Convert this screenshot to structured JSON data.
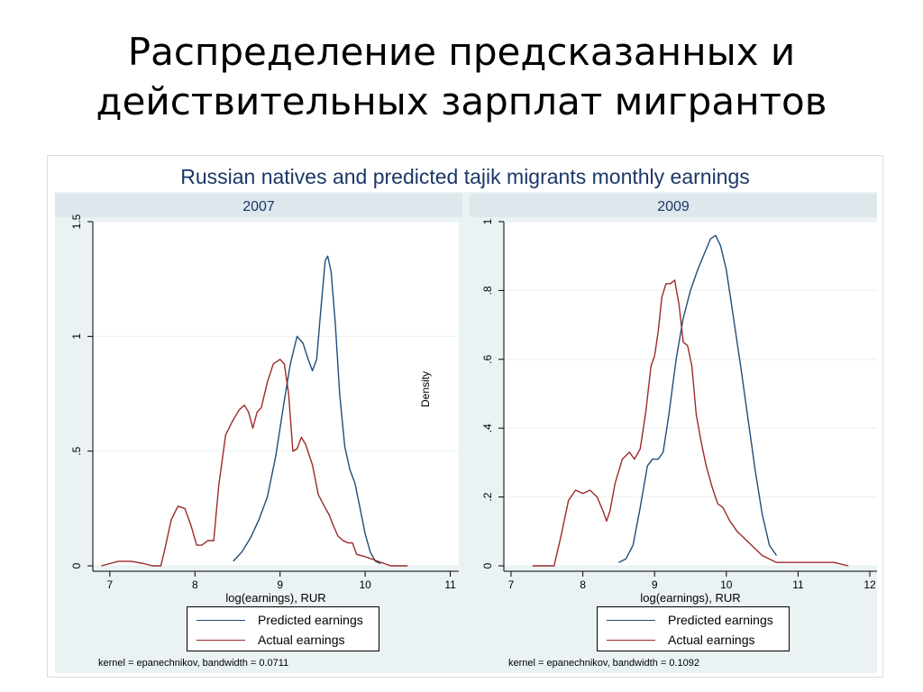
{
  "slide": {
    "title_line1": "Распределение предсказанных и",
    "title_line2": "действительных зарплат мигрантов"
  },
  "figure": {
    "title": "Russian natives and predicted tajik migrants monthly earnings",
    "ylabel": "Density"
  },
  "colors": {
    "predicted": "#1f4e79",
    "actual": "#9c2a2a",
    "grid": "#eaf2f3",
    "title": "#1c3768"
  },
  "chart_data": [
    {
      "type": "line",
      "panel_title": "2007",
      "xlabel": "log(earnings), RUR",
      "ylabel": "Density",
      "xlim": [
        6.8,
        11.1
      ],
      "ylim": [
        0,
        1.5
      ],
      "xticks": [
        7,
        8,
        9,
        10,
        11
      ],
      "yticks": [
        0,
        0.5,
        1,
        1.5
      ],
      "ytick_labels": [
        "0",
        ".5",
        "1",
        "1.5"
      ],
      "grid": true,
      "legend_position": "bottom",
      "note": "kernel = epanechnikov, bandwidth = 0.0711",
      "series": [
        {
          "name": "Predicted earnings",
          "points": [
            [
              8.45,
              0.02
            ],
            [
              8.55,
              0.06
            ],
            [
              8.65,
              0.12
            ],
            [
              8.75,
              0.2
            ],
            [
              8.85,
              0.3
            ],
            [
              8.95,
              0.48
            ],
            [
              9.05,
              0.72
            ],
            [
              9.12,
              0.88
            ],
            [
              9.2,
              1.0
            ],
            [
              9.27,
              0.97
            ],
            [
              9.33,
              0.9
            ],
            [
              9.38,
              0.85
            ],
            [
              9.43,
              0.9
            ],
            [
              9.48,
              1.12
            ],
            [
              9.53,
              1.33
            ],
            [
              9.56,
              1.35
            ],
            [
              9.6,
              1.28
            ],
            [
              9.65,
              1.05
            ],
            [
              9.7,
              0.75
            ],
            [
              9.76,
              0.52
            ],
            [
              9.82,
              0.42
            ],
            [
              9.88,
              0.36
            ],
            [
              9.94,
              0.25
            ],
            [
              10.0,
              0.14
            ],
            [
              10.06,
              0.06
            ],
            [
              10.12,
              0.02
            ],
            [
              10.18,
              0.01
            ]
          ]
        },
        {
          "name": "Actual earnings",
          "points": [
            [
              6.9,
              0.0
            ],
            [
              7.0,
              0.01
            ],
            [
              7.1,
              0.02
            ],
            [
              7.25,
              0.02
            ],
            [
              7.4,
              0.01
            ],
            [
              7.5,
              0.0
            ],
            [
              7.6,
              0.0
            ],
            [
              7.65,
              0.08
            ],
            [
              7.72,
              0.2
            ],
            [
              7.8,
              0.26
            ],
            [
              7.88,
              0.25
            ],
            [
              7.95,
              0.18
            ],
            [
              8.02,
              0.09
            ],
            [
              8.08,
              0.09
            ],
            [
              8.15,
              0.11
            ],
            [
              8.22,
              0.11
            ],
            [
              8.28,
              0.35
            ],
            [
              8.36,
              0.57
            ],
            [
              8.44,
              0.63
            ],
            [
              8.52,
              0.68
            ],
            [
              8.58,
              0.7
            ],
            [
              8.63,
              0.67
            ],
            [
              8.68,
              0.6
            ],
            [
              8.73,
              0.67
            ],
            [
              8.78,
              0.69
            ],
            [
              8.85,
              0.8
            ],
            [
              8.92,
              0.88
            ],
            [
              9.0,
              0.9
            ],
            [
              9.05,
              0.88
            ],
            [
              9.1,
              0.75
            ],
            [
              9.15,
              0.5
            ],
            [
              9.2,
              0.51
            ],
            [
              9.25,
              0.56
            ],
            [
              9.3,
              0.53
            ],
            [
              9.38,
              0.44
            ],
            [
              9.45,
              0.31
            ],
            [
              9.52,
              0.26
            ],
            [
              9.58,
              0.22
            ],
            [
              9.62,
              0.18
            ],
            [
              9.68,
              0.13
            ],
            [
              9.74,
              0.11
            ],
            [
              9.8,
              0.1
            ],
            [
              9.85,
              0.1
            ],
            [
              9.9,
              0.05
            ],
            [
              10.0,
              0.04
            ],
            [
              10.15,
              0.02
            ],
            [
              10.3,
              0.0
            ],
            [
              10.5,
              0.0
            ]
          ]
        }
      ]
    },
    {
      "type": "line",
      "panel_title": "2009",
      "xlabel": "log(earnings), RUR",
      "ylabel": "Density",
      "xlim": [
        6.9,
        12.1
      ],
      "ylim": [
        0,
        1
      ],
      "xticks": [
        7,
        8,
        9,
        10,
        11,
        12
      ],
      "yticks": [
        0,
        0.2,
        0.4,
        0.6,
        0.8,
        1
      ],
      "ytick_labels": [
        "0",
        ".2",
        ".4",
        ".6",
        ".8",
        "1"
      ],
      "grid": true,
      "legend_position": "bottom",
      "note": "kernel = epanechnikov, bandwidth = 0.1092",
      "series": [
        {
          "name": "Predicted earnings",
          "points": [
            [
              8.5,
              0.01
            ],
            [
              8.6,
              0.02
            ],
            [
              8.7,
              0.06
            ],
            [
              8.8,
              0.17
            ],
            [
              8.9,
              0.29
            ],
            [
              8.97,
              0.31
            ],
            [
              9.05,
              0.31
            ],
            [
              9.12,
              0.33
            ],
            [
              9.2,
              0.44
            ],
            [
              9.3,
              0.6
            ],
            [
              9.4,
              0.72
            ],
            [
              9.5,
              0.8
            ],
            [
              9.6,
              0.86
            ],
            [
              9.7,
              0.91
            ],
            [
              9.78,
              0.95
            ],
            [
              9.85,
              0.96
            ],
            [
              9.92,
              0.93
            ],
            [
              10.0,
              0.86
            ],
            [
              10.1,
              0.72
            ],
            [
              10.2,
              0.58
            ],
            [
              10.3,
              0.43
            ],
            [
              10.4,
              0.28
            ],
            [
              10.5,
              0.15
            ],
            [
              10.6,
              0.06
            ],
            [
              10.7,
              0.03
            ]
          ]
        },
        {
          "name": "Actual earnings",
          "points": [
            [
              7.3,
              0.0
            ],
            [
              7.5,
              0.0
            ],
            [
              7.6,
              0.0
            ],
            [
              7.7,
              0.09
            ],
            [
              7.8,
              0.19
            ],
            [
              7.9,
              0.22
            ],
            [
              8.0,
              0.21
            ],
            [
              8.1,
              0.22
            ],
            [
              8.2,
              0.2
            ],
            [
              8.28,
              0.16
            ],
            [
              8.33,
              0.13
            ],
            [
              8.38,
              0.16
            ],
            [
              8.45,
              0.24
            ],
            [
              8.55,
              0.31
            ],
            [
              8.65,
              0.33
            ],
            [
              8.72,
              0.31
            ],
            [
              8.8,
              0.34
            ],
            [
              8.88,
              0.45
            ],
            [
              8.95,
              0.58
            ],
            [
              9.0,
              0.61
            ],
            [
              9.05,
              0.68
            ],
            [
              9.1,
              0.78
            ],
            [
              9.16,
              0.82
            ],
            [
              9.22,
              0.82
            ],
            [
              9.28,
              0.83
            ],
            [
              9.34,
              0.76
            ],
            [
              9.4,
              0.65
            ],
            [
              9.46,
              0.64
            ],
            [
              9.52,
              0.58
            ],
            [
              9.58,
              0.44
            ],
            [
              9.65,
              0.36
            ],
            [
              9.72,
              0.29
            ],
            [
              9.8,
              0.23
            ],
            [
              9.88,
              0.18
            ],
            [
              9.95,
              0.17
            ],
            [
              10.05,
              0.13
            ],
            [
              10.15,
              0.1
            ],
            [
              10.3,
              0.07
            ],
            [
              10.5,
              0.03
            ],
            [
              10.7,
              0.01
            ],
            [
              10.9,
              0.01
            ],
            [
              11.1,
              0.01
            ],
            [
              11.3,
              0.01
            ],
            [
              11.5,
              0.01
            ],
            [
              11.7,
              0.0
            ]
          ]
        }
      ]
    }
  ]
}
